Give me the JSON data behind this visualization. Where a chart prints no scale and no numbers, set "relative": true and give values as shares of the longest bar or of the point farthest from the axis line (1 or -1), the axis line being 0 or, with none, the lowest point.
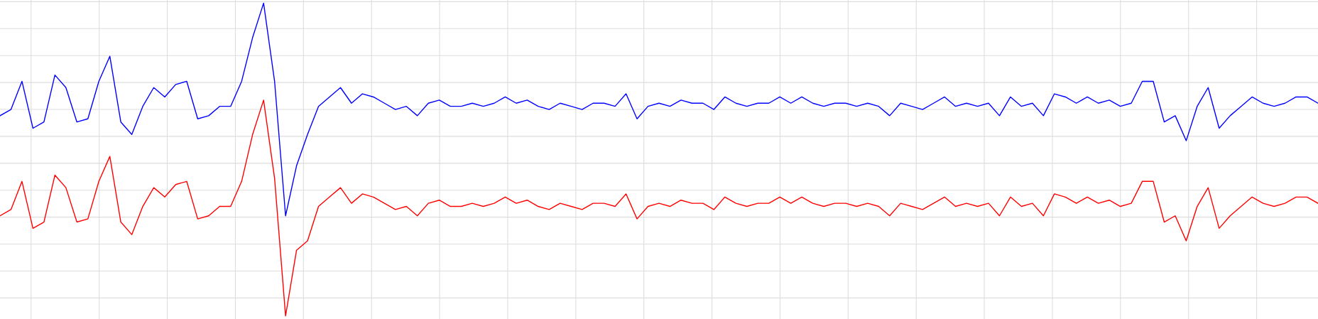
{
  "chart_data": {
    "type": "line",
    "relative": true,
    "grid": true,
    "legend": false,
    "categories": [
      null,
      null,
      null,
      null,
      null,
      null,
      null,
      null,
      null,
      null,
      null,
      null,
      null,
      null,
      null,
      null,
      null,
      null,
      null,
      null,
      null,
      null,
      null,
      null,
      null,
      null,
      null,
      null,
      null,
      null,
      null,
      null,
      null,
      null,
      null,
      null,
      null,
      null,
      null,
      null,
      null,
      null,
      null,
      null,
      null,
      null,
      null,
      null,
      null,
      null,
      null,
      null,
      null,
      null,
      null,
      null,
      null,
      null,
      null,
      null,
      null,
      null,
      null,
      null,
      null,
      null,
      null,
      null,
      null,
      null,
      null,
      null,
      null,
      null,
      null,
      null,
      null,
      null,
      null,
      null,
      null,
      null,
      null,
      null,
      null,
      null,
      null,
      null,
      null,
      null,
      null,
      null,
      null,
      null,
      null,
      null,
      null,
      null,
      null,
      null,
      null,
      null,
      null,
      null,
      null,
      null,
      null,
      null,
      null,
      null,
      null,
      null,
      null,
      null,
      null,
      null,
      null,
      null,
      null,
      null,
      null
    ],
    "series": [
      {
        "color": "#0000ff",
        "values": [
          0.64,
          0.66,
          0.75,
          0.6,
          0.62,
          0.77,
          0.73,
          0.62,
          0.63,
          0.75,
          0.83,
          0.62,
          0.58,
          0.67,
          0.73,
          0.7,
          0.74,
          0.75,
          0.63,
          0.64,
          0.67,
          0.67,
          0.75,
          0.89,
          1.0,
          0.75,
          0.32,
          0.48,
          0.58,
          0.67,
          0.7,
          0.73,
          0.68,
          0.71,
          0.7,
          0.68,
          0.66,
          0.67,
          0.64,
          0.68,
          0.69,
          0.67,
          0.67,
          0.68,
          0.67,
          0.68,
          0.7,
          0.68,
          0.69,
          0.67,
          0.66,
          0.68,
          0.67,
          0.66,
          0.68,
          0.68,
          0.67,
          0.71,
          0.63,
          0.67,
          0.68,
          0.67,
          0.69,
          0.68,
          0.68,
          0.66,
          0.7,
          0.68,
          0.67,
          0.68,
          0.68,
          0.7,
          0.68,
          0.7,
          0.68,
          0.67,
          0.68,
          0.68,
          0.67,
          0.68,
          0.67,
          0.64,
          0.68,
          0.67,
          0.66,
          0.68,
          0.7,
          0.67,
          0.68,
          0.67,
          0.68,
          0.64,
          0.7,
          0.67,
          0.68,
          0.64,
          0.71,
          0.7,
          0.68,
          0.7,
          0.68,
          0.69,
          0.67,
          0.68,
          0.75,
          0.75,
          0.62,
          0.64,
          0.56,
          0.67,
          0.73,
          0.6,
          0.64,
          0.67,
          0.7,
          0.68,
          0.67,
          0.68,
          0.7,
          0.7,
          0.68
        ]
      },
      {
        "color": "#ff0000",
        "values": [
          0.32,
          0.34,
          0.43,
          0.28,
          0.3,
          0.45,
          0.41,
          0.3,
          0.31,
          0.43,
          0.51,
          0.3,
          0.26,
          0.35,
          0.41,
          0.38,
          0.42,
          0.43,
          0.31,
          0.32,
          0.35,
          0.35,
          0.43,
          0.58,
          0.69,
          0.44,
          0.0,
          0.21,
          0.24,
          0.35,
          0.38,
          0.41,
          0.36,
          0.39,
          0.38,
          0.36,
          0.34,
          0.35,
          0.32,
          0.36,
          0.37,
          0.35,
          0.35,
          0.36,
          0.35,
          0.36,
          0.38,
          0.36,
          0.37,
          0.35,
          0.34,
          0.36,
          0.35,
          0.34,
          0.36,
          0.36,
          0.35,
          0.39,
          0.31,
          0.35,
          0.36,
          0.35,
          0.37,
          0.36,
          0.36,
          0.34,
          0.38,
          0.36,
          0.35,
          0.36,
          0.36,
          0.38,
          0.36,
          0.38,
          0.36,
          0.35,
          0.36,
          0.36,
          0.35,
          0.36,
          0.35,
          0.32,
          0.36,
          0.35,
          0.34,
          0.36,
          0.38,
          0.35,
          0.36,
          0.35,
          0.36,
          0.32,
          0.38,
          0.35,
          0.36,
          0.32,
          0.39,
          0.38,
          0.36,
          0.38,
          0.36,
          0.37,
          0.35,
          0.36,
          0.43,
          0.43,
          0.3,
          0.32,
          0.24,
          0.35,
          0.41,
          0.28,
          0.32,
          0.35,
          0.38,
          0.36,
          0.35,
          0.36,
          0.38,
          0.38,
          0.36
        ]
      }
    ]
  }
}
